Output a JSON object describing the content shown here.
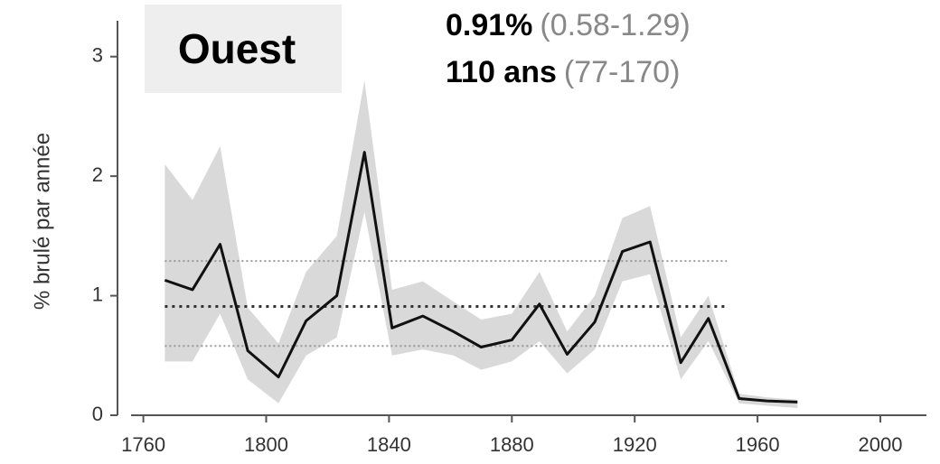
{
  "chart_data": {
    "type": "line",
    "title": "Ouest",
    "annotations": [
      {
        "bold": "0.91%",
        "gray": "(0.58-1.29)"
      },
      {
        "bold": "110 ans",
        "gray": "(77-170)"
      }
    ],
    "y_label": "% brulé par année",
    "x": [
      1767,
      1776,
      1785,
      1794,
      1804,
      1813,
      1823,
      1832,
      1841,
      1851,
      1861,
      1870,
      1880,
      1889,
      1898,
      1907,
      1916,
      1925,
      1935,
      1944,
      1954,
      1963,
      1973
    ],
    "series": [
      {
        "color": "#111111",
        "values": [
          1.13,
          1.05,
          1.43,
          0.54,
          0.32,
          0.79,
          1.0,
          2.2,
          0.73,
          0.83,
          0.7,
          0.57,
          0.63,
          0.93,
          0.51,
          0.78,
          1.37,
          1.45,
          0.44,
          0.81,
          0.14,
          0.12,
          0.11
        ],
        "upper": [
          2.1,
          1.8,
          2.25,
          0.9,
          0.6,
          1.2,
          1.5,
          2.8,
          1.05,
          1.12,
          0.95,
          0.8,
          0.85,
          1.2,
          0.7,
          1.0,
          1.65,
          1.75,
          0.65,
          1.0,
          0.18,
          0.15,
          0.13
        ],
        "lower": [
          0.45,
          0.45,
          0.85,
          0.3,
          0.1,
          0.5,
          0.65,
          1.7,
          0.5,
          0.55,
          0.5,
          0.38,
          0.45,
          0.62,
          0.35,
          0.55,
          1.12,
          1.18,
          0.3,
          0.62,
          0.1,
          0.08,
          0.06
        ],
        "band_color": "#d9d9d9"
      }
    ],
    "hlines": [
      {
        "y": 1.29,
        "x": [
          1767,
          1950
        ],
        "dash": "fine"
      },
      {
        "y": 0.91,
        "x": [
          1767,
          1950
        ],
        "dash": "bold"
      },
      {
        "y": 0.58,
        "x": [
          1767,
          1950
        ],
        "dash": "fine"
      }
    ],
    "xlim": [
      1756,
      2015
    ],
    "ylim": [
      0,
      3.3
    ],
    "xticks": [
      1760,
      1800,
      1840,
      1880,
      1920,
      1960,
      2000
    ],
    "yticks": [
      0,
      1,
      2,
      3
    ]
  }
}
